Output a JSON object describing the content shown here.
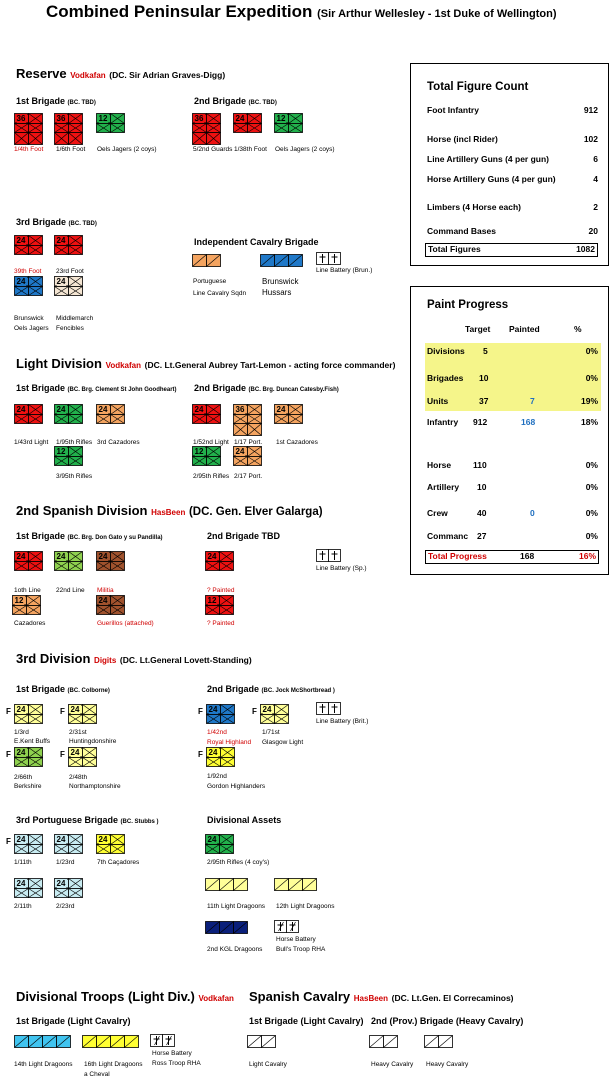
{
  "header": {
    "title": "Combined Peninsular Expedition",
    "subtitle": "(Sir Arthur Wellesley - 1st Duke of Wellington)"
  },
  "reserve": {
    "title": "Reserve",
    "painter": "Vodkafan",
    "commander": "(DC. Sir Adrian Graves-Digg)",
    "b1": {
      "title": "1st Brigade",
      "sub": "(BC. TBD)",
      "labels": [
        "1/4th Foot",
        "1/6th Foot",
        "Oels Jagers (2 coys)"
      ]
    },
    "b2": {
      "title": "2nd Brigade",
      "sub": "(BC. TBD)",
      "labels": [
        "5/2nd Guards",
        "1/38th Foot",
        "Oels Jagers (2 coys)"
      ]
    },
    "b3": {
      "title": "3rd Brigade",
      "sub": "(BC. TBD)",
      "labels": [
        "39th Foot",
        "23rd Foot",
        "Brunswick",
        "Oels Jagers",
        "Middlemarch",
        "Fencibles"
      ]
    },
    "cav": {
      "title": "Independent Cavalry Brigade",
      "labels": [
        "Portuguese",
        "Line Cavalry Sqdn",
        "Brunswick",
        "Hussars",
        "Line Battery (Brun.)"
      ]
    }
  },
  "light": {
    "title": "Light Division",
    "painter": "Vodkafan",
    "commander": "(DC. Lt.General Aubrey Tart-Lemon - acting force commander)",
    "b1": {
      "title": "1st Brigade",
      "sub": "(BC. Brg. Clement St John Goodheart)",
      "labels": [
        "1/43rd Light",
        "1/95th Rifles",
        "3rd Cazadores",
        "3/95th Rifles"
      ]
    },
    "b2": {
      "title": "2nd Brigade",
      "sub": "(BC. Brg. Duncan Catesby.Fish)",
      "labels": [
        "1/52nd Light",
        "1/17 Port.",
        "1st Cazadores",
        "2/95th Rifles",
        "2/17 Port."
      ]
    }
  },
  "spanish": {
    "title": "2nd Spanish Division",
    "painter": "HasBeen",
    "commander": "(DC. Gen. Elver Galarga)",
    "b1": {
      "title": "1st Brigade",
      "sub": "(BC. Brg. Don Gato y su Pandilla)",
      "labels": [
        "1oth Line",
        "22nd Line",
        "Militia",
        "Cazadores",
        "Guerillos (attached)"
      ]
    },
    "b2": {
      "title": "2nd Brigade TBD",
      "labels": [
        "? Painted",
        "? Painted",
        "Line Battery (Sp.)"
      ]
    }
  },
  "third": {
    "title": "3rd Division",
    "painter": "Digits",
    "commander": "(DC. Lt.General Lovett-Standing)",
    "b1": {
      "title": "1st Brigade",
      "sub": "(BC. Colborne)",
      "labels": [
        "1/3rd",
        "E.Kent Buffs",
        "2/31st",
        "Huntingdonshire",
        "2/66th",
        "Berkshire",
        "2/48th",
        "Northamptonshire"
      ]
    },
    "b2": {
      "title": "2nd Brigade",
      "sub": "(BC. Jock McShortbread )",
      "labels": [
        "1/42nd",
        "Royal Highland",
        "1/71st",
        "Glasgow Light",
        "1/92nd",
        "Gordon Highlanders",
        "Line Battery (Brit.)"
      ]
    },
    "b3": {
      "title": "3rd Portuguese Brigade",
      "sub": "(BC. Stubbs )",
      "labels": [
        "1/11th",
        "1/23rd",
        "7th Caçadores",
        "2/11th",
        "2/23rd"
      ]
    },
    "assets": {
      "title": "Divisional Assets",
      "labels": [
        "2/95th Rifles (4 coy's)",
        "11th Light Dragoons",
        "12th Light Dragoons",
        "2nd KGL Dragoons",
        "Horse Battery",
        "Bull's Troop RHA"
      ]
    }
  },
  "divtroops": {
    "title": "Divisional Troops (Light Div.)",
    "painter": "Vodkafan",
    "b1": {
      "title": "1st Brigade (Light Cavalry)",
      "labels": [
        "14th Light Dragoons",
        "16th Light Dragoons",
        "a Cheval",
        "Horse Battery",
        "Ross Troop RHA"
      ]
    }
  },
  "spcav": {
    "title": "Spanish Cavalry",
    "painter": "HasBeen",
    "commander": "(DC. Lt.Gen. El Correcaminos)",
    "b1": {
      "title": "1st Brigade (Light Cavalry)",
      "labels": [
        "Light Cavalry"
      ]
    },
    "b2": {
      "title": "2nd (Prov.) Brigade (Heavy Cavalry)",
      "labels": [
        "Heavy Cavalry",
        "Heavy Cavalry"
      ]
    }
  },
  "unit_numbers": {
    "n36": "36",
    "n24": "24",
    "n12": "12",
    "f": "F"
  },
  "colors": {
    "red": "#ee1111",
    "green": "#22b14c",
    "tan": "#f4a460",
    "brown": "#a0522d",
    "blue": "#1f78c8",
    "yellow": "#ffff33",
    "pale": "#c8ecf2",
    "yellowgreen": "#8fd14f",
    "navy": "#0a1f7a",
    "cyan": "#40c4f0",
    "lightyellow": "#ffff99",
    "beige": "#f5e6d3"
  },
  "figure_count": {
    "title": "Total Figure Count",
    "rows": [
      {
        "label": "Foot Infantry",
        "value": "912"
      },
      {
        "label": "Horse (incl Rider)",
        "value": "102"
      },
      {
        "label": "Line Artillery Guns (4 per gun)",
        "value": "6"
      },
      {
        "label": "Horse Artillery Guns (4 per gun)",
        "value": "4"
      },
      {
        "label": "Limbers (4 Horse each)",
        "value": "2"
      },
      {
        "label": "Command Bases",
        "value": "20"
      }
    ],
    "total": {
      "label": "Total Figures",
      "value": "1082"
    }
  },
  "paint_progress": {
    "title": "Paint Progress",
    "headers": {
      "target": "Target",
      "painted": "Painted",
      "pct": "%"
    },
    "rows": [
      {
        "label": "Divisions",
        "target": "5",
        "painted": "",
        "pct": "0%"
      },
      {
        "label": "Brigades",
        "target": "10",
        "painted": "",
        "pct": "0%"
      },
      {
        "label": "Units",
        "target": "37",
        "painted": "7",
        "pct": "19%"
      },
      {
        "label": "Infantry",
        "target": "912",
        "painted": "168",
        "pct": "18%"
      },
      {
        "label": "Horse",
        "target": "110",
        "painted": "",
        "pct": "0%"
      },
      {
        "label": "Artillery",
        "target": "10",
        "painted": "",
        "pct": "0%"
      },
      {
        "label": "Crew",
        "target": "40",
        "painted": "0",
        "pct": "0%"
      },
      {
        "label": "Commanc",
        "target": "27",
        "painted": "",
        "pct": "0%"
      }
    ],
    "total": {
      "label": "Total Progress",
      "painted": "168",
      "pct": "16%"
    }
  }
}
